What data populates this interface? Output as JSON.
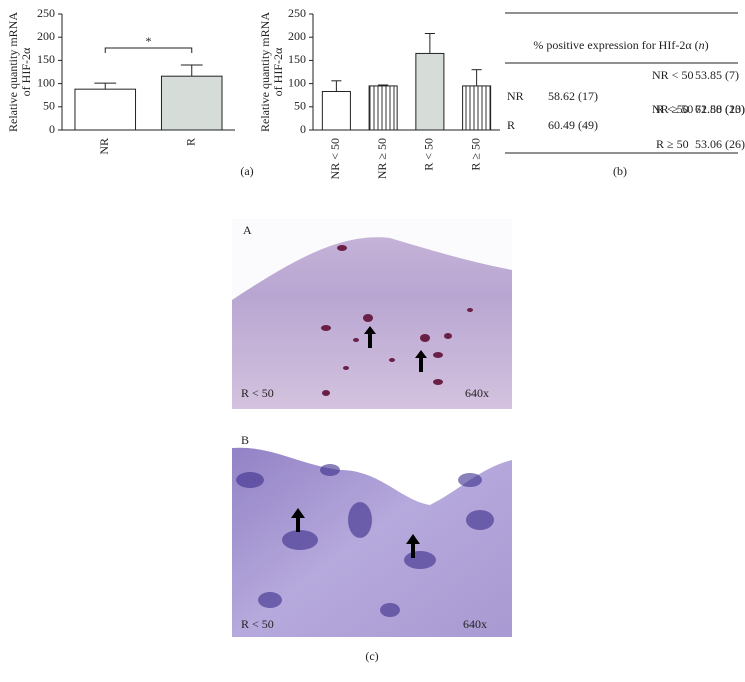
{
  "chart_data": [
    {
      "type": "bar",
      "categories": [
        "NR",
        "R"
      ],
      "values": [
        88,
        116
      ],
      "errors": [
        13,
        24
      ],
      "colors": [
        "#ffffff",
        "#d6ddd9"
      ],
      "hatched": [
        false,
        false
      ],
      "ylim": [
        0,
        250
      ],
      "yticks": [
        0,
        50,
        100,
        150,
        200,
        250
      ],
      "y_label": [
        "Relative quantity mRNA",
        "of HIF-2α"
      ],
      "annotation": "*"
    },
    {
      "type": "bar",
      "categories": [
        "NR < 50",
        "NR ≥ 50",
        "R < 50",
        "R ≥ 50"
      ],
      "values": [
        83,
        95,
        165,
        95
      ],
      "errors": [
        23,
        2,
        43,
        35
      ],
      "colors": [
        "#ffffff",
        "#ffffff",
        "#d6ddd9",
        "#ffffff"
      ],
      "hatched": [
        false,
        true,
        false,
        true
      ],
      "ylim": [
        0,
        250
      ],
      "yticks": [
        0,
        50,
        100,
        150,
        200,
        250
      ],
      "y_label": [
        "Relative quantity mRNA",
        "of HIF-2α"
      ]
    }
  ],
  "panel_labels": [
    "(a)",
    "(b)",
    "(c)"
  ],
  "table": {
    "header_parts": [
      "% positive expression for HIf-2α (",
      "n",
      ")"
    ],
    "groups": [
      {
        "group": "NR",
        "value": "58.62 (17)",
        "subgroups": [
          {
            "label": "NR < 50",
            "value": "53.85 (7)"
          },
          {
            "label": "NR ≥ 50",
            "value": "62.50 (10)"
          }
        ]
      },
      {
        "group": "R",
        "value": "60.49 (49)",
        "subgroups": [
          {
            "label": "R < 50",
            "value": "71.88 (23)"
          },
          {
            "label": "R ≥ 50",
            "value": "53.06 (26)"
          }
        ]
      }
    ]
  },
  "micrographs": [
    {
      "label": "A",
      "group": "R < 50",
      "magnification": "640x"
    },
    {
      "label": "B",
      "group": "R < 50",
      "magnification": "640x"
    }
  ]
}
